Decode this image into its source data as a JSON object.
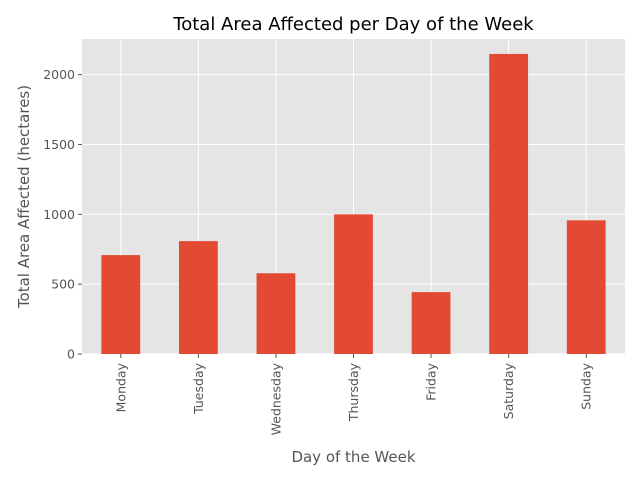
{
  "chart_data": {
    "type": "bar",
    "title": "Total Area Affected per Day of the Week",
    "xlabel": "Day of the Week",
    "ylabel": "Total Area Affected (hectares)",
    "categories": [
      "Monday",
      "Tuesday",
      "Wednesday",
      "Thursday",
      "Friday",
      "Saturday",
      "Sunday"
    ],
    "values": [
      708,
      808,
      578,
      1000,
      443,
      2148,
      957
    ],
    "ylim": [
      0,
      2255
    ],
    "yticks": [
      0,
      500,
      1000,
      1500,
      2000
    ],
    "grid": true,
    "bar_color": "#E24A33",
    "background_color": "#E5E5E5",
    "grid_color": "#FFFFFF"
  }
}
